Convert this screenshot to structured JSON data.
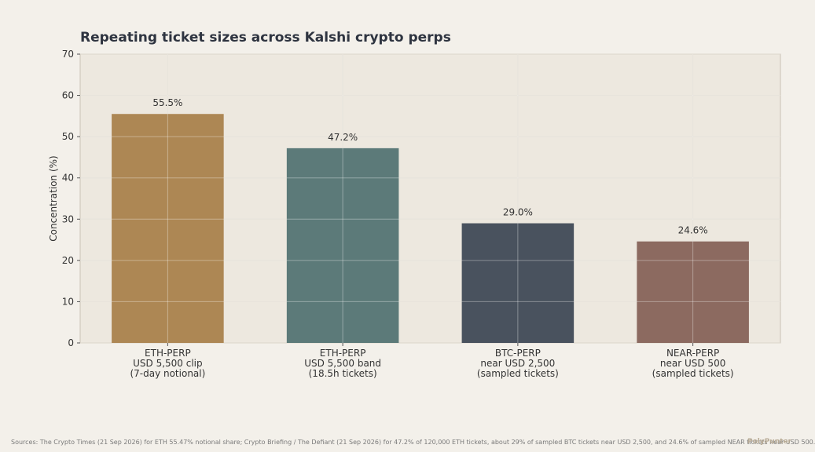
{
  "chart_data": {
    "type": "bar",
    "title": "Repeating ticket sizes across Kalshi crypto perps",
    "xlabel": "",
    "ylabel": "Concentration (%)",
    "ylim": [
      0,
      70
    ],
    "yticks": [
      0,
      10,
      20,
      30,
      40,
      50,
      60,
      70
    ],
    "grid": true,
    "categories": [
      [
        "ETH-PERP",
        "USD 5,500 clip",
        "(7-day notional)"
      ],
      [
        "ETH-PERP",
        "USD 5,500 band",
        "(18.5h tickets)"
      ],
      [
        "BTC-PERP",
        "near USD 2,500",
        "(sampled tickets)"
      ],
      [
        "NEAR-PERP",
        "near USD 500",
        "(sampled tickets)"
      ]
    ],
    "values": [
      55.5,
      47.2,
      29.0,
      24.6
    ],
    "value_labels": [
      "55.5%",
      "47.2%",
      "29.0%",
      "24.6%"
    ],
    "colors": [
      "#ad8754",
      "#5c7a79",
      "#49525e",
      "#8c6a60"
    ]
  },
  "footer": {
    "sources": "Sources: The Crypto Times (21 Sep 2026) for ETH 55.47% notional share; Crypto Briefing / The Defiant (21 Sep 2026) for 47.2% of 120,000 ETH tickets, about 29% of sampled BTC tickets near USD 2,500, and 24.6% of sampled NEAR tickets near USD 500.",
    "watermark": "PolyPunter"
  },
  "colors": {
    "page_background": "#f3f0ea",
    "plot_background": "#ede8df",
    "grid": "#dcd6cb",
    "axis": "#c9c2b6",
    "text": "#333333"
  }
}
